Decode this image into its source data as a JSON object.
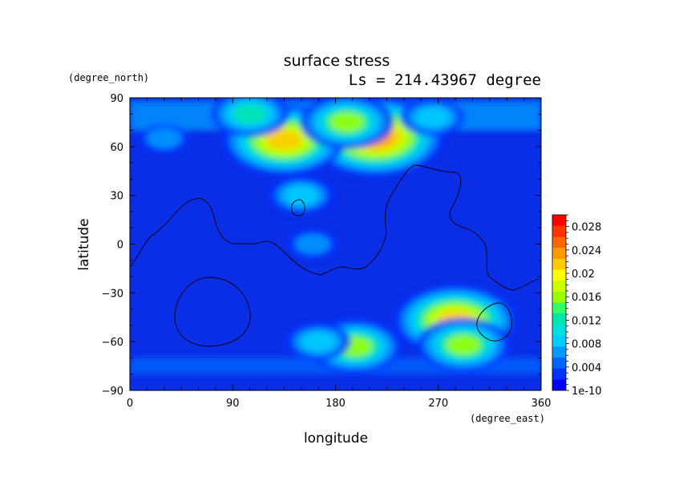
{
  "chart_data": {
    "type": "heatmap",
    "title": "surface stress",
    "subtitle": "Ls = 214.43967 degree",
    "xlabel": "longitude",
    "ylabel": "latitude",
    "x_units": "(degree_east)",
    "y_units": "(degree_north)",
    "xlim": [
      0,
      360
    ],
    "ylim": [
      -90,
      90
    ],
    "x_ticks": [
      "0",
      "90",
      "180",
      "270",
      "360"
    ],
    "y_ticks": [
      "90",
      "60",
      "30",
      "0",
      "−30",
      "−60",
      "−90"
    ],
    "colorbar": {
      "min": 0,
      "max": 0.03,
      "labels": [
        "1e-10",
        "0.004",
        "0.008",
        "0.012",
        "0.016",
        "0.02",
        "0.024",
        "0.028"
      ],
      "colors": [
        "#0000ff",
        "#0033ff",
        "#0066ff",
        "#0099ff",
        "#00ccff",
        "#00e0e0",
        "#00e5b0",
        "#33ff66",
        "#99ff00",
        "#ccff00",
        "#ffff00",
        "#ffcc00",
        "#ff9900",
        "#ff6600",
        "#ff3300",
        "#ff0000"
      ]
    },
    "hotspots": [
      {
        "lon": 215,
        "lat": 66,
        "value": 0.024
      },
      {
        "lon": 135,
        "lat": 64,
        "value": 0.02
      },
      {
        "lon": 190,
        "lat": 75,
        "value": 0.014
      },
      {
        "lon": 105,
        "lat": 80,
        "value": 0.012
      },
      {
        "lon": 285,
        "lat": -47,
        "value": 0.02
      },
      {
        "lon": 292,
        "lat": -62,
        "value": 0.016
      },
      {
        "lon": 197,
        "lat": -63,
        "value": 0.016
      },
      {
        "lon": 165,
        "lat": -60,
        "value": 0.01
      },
      {
        "lon": 150,
        "lat": 30,
        "value": 0.009
      },
      {
        "lon": 160,
        "lat": 0,
        "value": 0.007
      },
      {
        "lon": 30,
        "lat": 65,
        "value": 0.007
      },
      {
        "lon": 265,
        "lat": 78,
        "value": 0.009
      }
    ]
  }
}
